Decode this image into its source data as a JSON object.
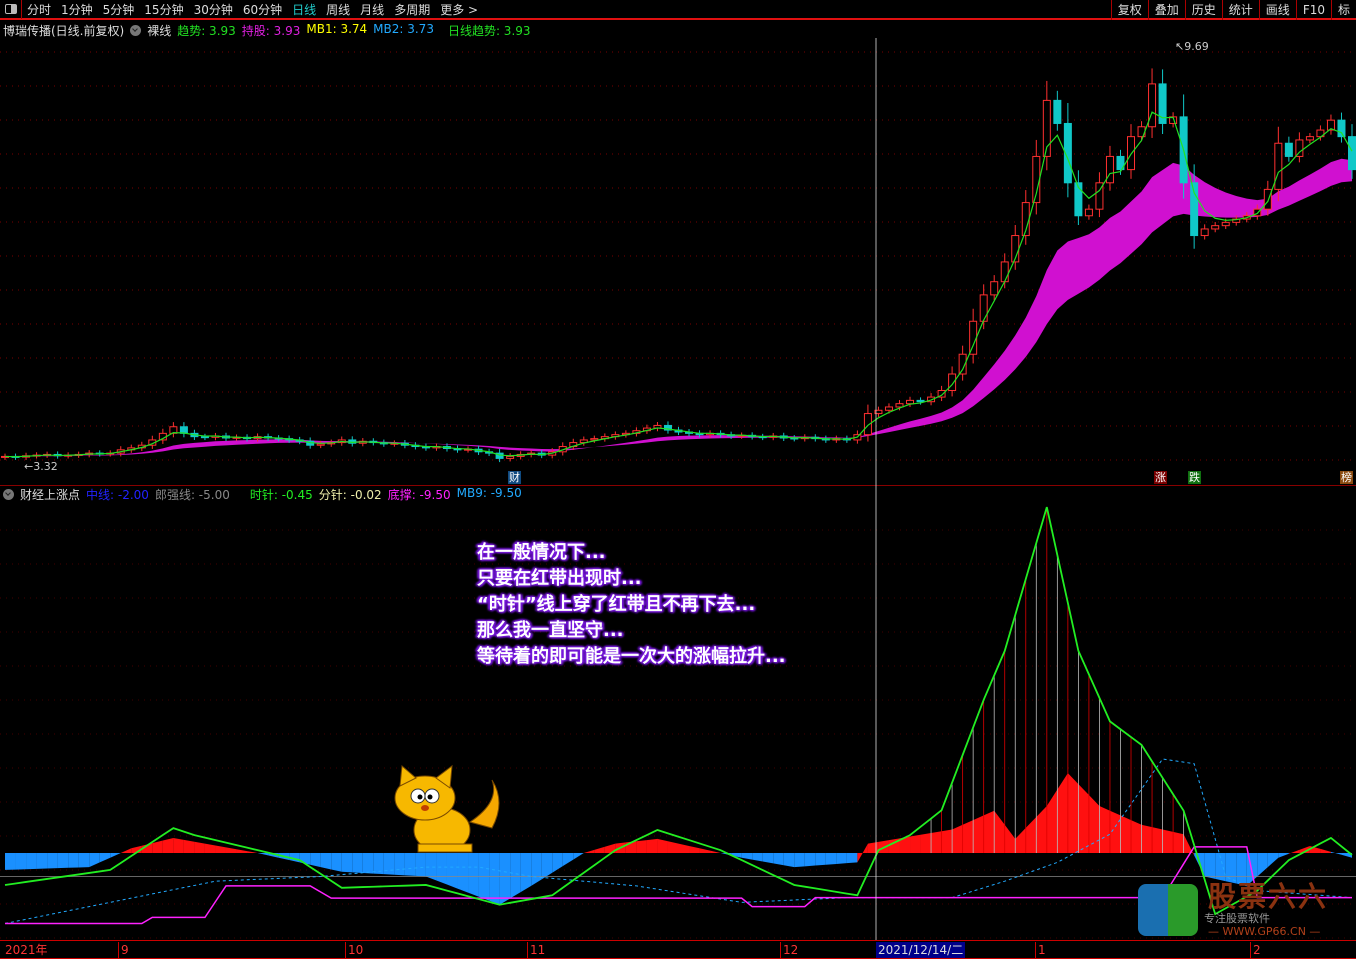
{
  "toolbar": {
    "tabs": [
      "分时",
      "1分钟",
      "5分钟",
      "15分钟",
      "30分钟",
      "60分钟",
      "日线",
      "周线",
      "月线",
      "多周期",
      "更多 >"
    ],
    "active": "日线",
    "right": [
      "复权",
      "叠加",
      "历史",
      "统计",
      "画线",
      "F10",
      "标"
    ]
  },
  "main_legend": {
    "title": "博瑞传播(日线.前复权)",
    "mode": "裸线",
    "items": [
      {
        "label": "趋势: 3.93",
        "color": "#22e022"
      },
      {
        "label": "持股: 3.93",
        "color": "#e020e0"
      },
      {
        "label": "MB1: 3.74",
        "color": "#ffff00"
      },
      {
        "label": "MB2: 3.73",
        "color": "#22aaff"
      },
      {
        "label": "日线趋势: 3.93",
        "color": "#22e022"
      }
    ]
  },
  "indicator_legend": {
    "title": "财经上涨点",
    "items": [
      {
        "label": "中线: -2.00",
        "color": "#2222ff"
      },
      {
        "label": "郎强线: -5.00",
        "color": "#888888"
      },
      {
        "label": "时针: -0.45",
        "color": "#22ee22"
      },
      {
        "label": "分针: -0.02",
        "color": "#eeeeaa"
      },
      {
        "label": "底撑: -9.50",
        "color": "#ff22ff"
      },
      {
        "label": "MB9: -9.50",
        "color": "#22aaff"
      }
    ]
  },
  "note_lines": [
    "在一般情况下...",
    "只要在红带出现时...",
    "“时针”线上穿了红带且不再下去...",
    "那么我一直坚守...",
    "等待着的即可能是一次大的涨幅拉升..."
  ],
  "markers": {
    "cai": "财",
    "zhang": "涨",
    "die": "跌",
    "bang": "榜"
  },
  "axis": {
    "months": [
      "2021年",
      "9",
      "10",
      "11",
      "12",
      "1",
      "2"
    ],
    "cursor_date": "2021/12/14/二"
  },
  "logo": {
    "name": "股票六六",
    "slogan": "专注股票软件",
    "url": "— WWW.GP66.CN —"
  },
  "colors": {
    "up": "#ff3030",
    "down": "#10c8c8",
    "trend": "#22e022",
    "band": "#d010d0",
    "bg": "#000000"
  },
  "chart_data": {
    "type": "candlestick",
    "price_min_label": "3.32",
    "price_max_label": "9.69",
    "price_range": [
      3.32,
      9.69
    ],
    "closes": [
      3.45,
      3.44,
      3.46,
      3.47,
      3.48,
      3.46,
      3.47,
      3.48,
      3.5,
      3.49,
      3.5,
      3.55,
      3.58,
      3.62,
      3.7,
      3.8,
      3.9,
      3.8,
      3.75,
      3.74,
      3.76,
      3.73,
      3.74,
      3.72,
      3.75,
      3.73,
      3.72,
      3.7,
      3.68,
      3.62,
      3.64,
      3.66,
      3.7,
      3.65,
      3.68,
      3.66,
      3.64,
      3.65,
      3.62,
      3.6,
      3.58,
      3.6,
      3.57,
      3.55,
      3.56,
      3.52,
      3.5,
      3.42,
      3.45,
      3.48,
      3.5,
      3.47,
      3.52,
      3.6,
      3.66,
      3.7,
      3.72,
      3.75,
      3.78,
      3.8,
      3.84,
      3.88,
      3.92,
      3.85,
      3.82,
      3.8,
      3.78,
      3.8,
      3.78,
      3.76,
      3.77,
      3.75,
      3.74,
      3.76,
      3.73,
      3.72,
      3.74,
      3.72,
      3.7,
      3.72,
      3.7,
      3.78,
      4.1,
      4.15,
      4.2,
      4.25,
      4.3,
      4.28,
      4.35,
      4.45,
      4.7,
      5.0,
      5.5,
      5.9,
      6.1,
      6.4,
      6.8,
      7.3,
      8.0,
      8.85,
      8.5,
      7.6,
      7.1,
      7.2,
      7.6,
      8.0,
      7.8,
      8.3,
      8.45,
      9.1,
      8.5,
      8.6,
      7.6,
      6.8,
      6.9,
      6.95,
      7.0,
      7.05,
      7.1,
      7.2,
      7.5,
      8.2,
      8.0,
      8.25,
      8.3,
      8.4,
      8.55,
      8.3,
      7.8
    ],
    "indicator": {
      "value_range": [
        -16,
        76
      ],
      "shizhen": [
        [
          0,
          -6.8
        ],
        [
          10,
          -3.6
        ],
        [
          16,
          5.3
        ],
        [
          18,
          3.8
        ],
        [
          24,
          0.6
        ],
        [
          28,
          -1.5
        ],
        [
          32,
          -7.4
        ],
        [
          40,
          -6.8
        ],
        [
          47,
          -11
        ],
        [
          52,
          -9
        ],
        [
          58,
          0.6
        ],
        [
          62,
          4.9
        ],
        [
          68,
          0.6
        ],
        [
          75,
          -6.8
        ],
        [
          81,
          -9
        ],
        [
          83,
          0.6
        ],
        [
          86,
          3.8
        ],
        [
          89,
          9.1
        ],
        [
          93,
          32.6
        ],
        [
          95,
          43
        ],
        [
          99,
          73.6
        ],
        [
          102,
          43
        ],
        [
          105,
          28
        ],
        [
          108,
          23
        ],
        [
          112,
          9
        ],
        [
          115,
          -13
        ],
        [
          119,
          -8
        ],
        [
          122,
          -1.5
        ],
        [
          126,
          3.2
        ],
        [
          128,
          -0.4
        ]
      ],
      "fill": [
        [
          0,
          -3.6
        ],
        [
          8,
          -3
        ],
        [
          12,
          1
        ],
        [
          16,
          3.2
        ],
        [
          24,
          0
        ],
        [
          28,
          -2
        ],
        [
          32,
          -4
        ],
        [
          40,
          -5
        ],
        [
          47,
          -11
        ],
        [
          50,
          -7
        ],
        [
          55,
          0
        ],
        [
          58,
          2
        ],
        [
          62,
          3
        ],
        [
          70,
          -1
        ],
        [
          75,
          -3
        ],
        [
          81,
          -2
        ],
        [
          82,
          2
        ],
        [
          90,
          5
        ],
        [
          94,
          9
        ],
        [
          96,
          3
        ],
        [
          99,
          10
        ],
        [
          101,
          17
        ],
        [
          104,
          10
        ],
        [
          108,
          6
        ],
        [
          112,
          4
        ],
        [
          114,
          -5
        ],
        [
          118,
          -7
        ],
        [
          121,
          -1
        ],
        [
          124,
          1.5
        ],
        [
          128,
          -1
        ]
      ],
      "mb9": [
        [
          0,
          -15
        ],
        [
          20,
          -6
        ],
        [
          30,
          -5
        ],
        [
          40,
          -3
        ],
        [
          45,
          -3
        ],
        [
          50,
          -5
        ],
        [
          60,
          -7
        ],
        [
          70,
          -10.5
        ],
        [
          80,
          -9.5
        ],
        [
          90,
          -9.5
        ],
        [
          95,
          -6
        ],
        [
          100,
          -2
        ],
        [
          105,
          4
        ],
        [
          110,
          20
        ],
        [
          113,
          19
        ],
        [
          116,
          -5
        ],
        [
          119,
          -8
        ],
        [
          128,
          -9.5
        ]
      ],
      "dicheng": [
        [
          0,
          -15
        ],
        [
          13,
          -15
        ],
        [
          14,
          -13.7
        ],
        [
          19,
          -13.7
        ],
        [
          21,
          -7
        ],
        [
          29,
          -7
        ],
        [
          31,
          -9.6
        ],
        [
          70,
          -9.6
        ],
        [
          71,
          -11.4
        ],
        [
          76,
          -11.4
        ],
        [
          77,
          -9.5
        ],
        [
          110,
          -9.5
        ],
        [
          113,
          1.3
        ],
        [
          118,
          1.3
        ],
        [
          119,
          -9.5
        ],
        [
          128,
          -9.5
        ]
      ],
      "langqiang": -5
    }
  }
}
